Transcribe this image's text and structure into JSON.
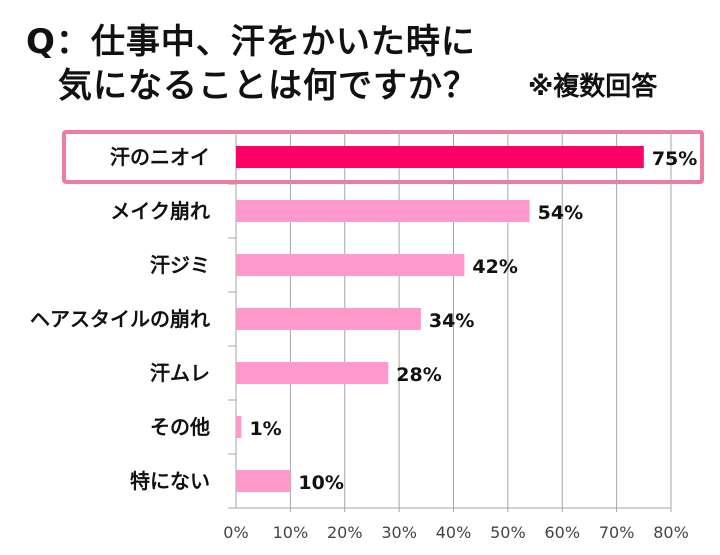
{
  "title_line1": "Q：仕事中、汗をかいた時に",
  "title_line2": "気になることは何ですか？",
  "note": "※複数回答",
  "chart_data": {
    "type": "bar",
    "orientation": "horizontal",
    "categories": [
      "汗のニオイ",
      "メイク崩れ",
      "汗ジミ",
      "ヘアスタイルの崩れ",
      "汗ムレ",
      "その他",
      "特にない"
    ],
    "values": [
      75,
      54,
      42,
      34,
      28,
      1,
      10
    ],
    "data_labels": [
      "75%",
      "54%",
      "42%",
      "34%",
      "28%",
      "1%",
      "10%"
    ],
    "xlim": [
      0,
      80
    ],
    "xticks": [
      "0%",
      "10%",
      "20%",
      "30%",
      "40%",
      "50%",
      "60%",
      "70%",
      "80%"
    ],
    "grid": true,
    "highlight_index": 0,
    "colors": {
      "highlight": "#FF0066",
      "bar": "#FF99CC",
      "highlight_box": "#EE7AA6",
      "grid": "#A6A6A6"
    }
  }
}
